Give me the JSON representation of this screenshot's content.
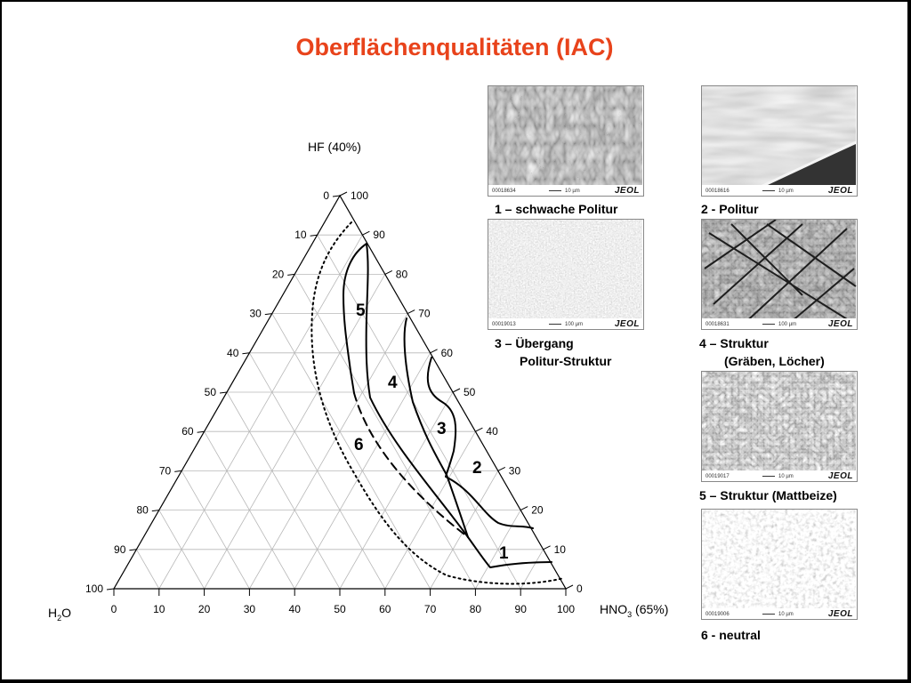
{
  "title": "Oberflächenqualitäten (IAC)",
  "axes": {
    "top_label": "HF (40%)",
    "left_label_base": "H",
    "left_label_sub": "2",
    "left_label_tail": "O",
    "right_label_base": "HNO",
    "right_label_sub": "3",
    "right_label_tail": " (65%)"
  },
  "ticks": {
    "left_side": [
      "0",
      "10",
      "20",
      "30",
      "40",
      "50",
      "60",
      "70",
      "80",
      "90",
      "100"
    ],
    "right_side": [
      "100",
      "90",
      "80",
      "70",
      "60",
      "50",
      "40",
      "30",
      "20",
      "10",
      "0"
    ],
    "bottom": [
      "0",
      "10",
      "20",
      "30",
      "40",
      "50",
      "60",
      "70",
      "80",
      "90",
      "100"
    ]
  },
  "regions": [
    "1",
    "2",
    "3",
    "4",
    "5",
    "6"
  ],
  "micrographs": [
    {
      "id": "00018634",
      "scale": "10 µm",
      "logo": "JEOL",
      "caption_line1": "1 – schwache Politur",
      "caption_line2": "",
      "texture": "t1"
    },
    {
      "id": "00018616",
      "scale": "10 µm",
      "logo": "JEOL",
      "caption_line1": "2 - Politur",
      "caption_line2": "",
      "texture": "t2"
    },
    {
      "id": "00019013",
      "scale": "100 µm",
      "logo": "JEOL",
      "caption_line1": "3 – Übergang",
      "caption_line2": "Politur-Struktur",
      "texture": "t3"
    },
    {
      "id": "00018631",
      "scale": "100 µm",
      "logo": "JEOL",
      "caption_line1": "4 – Struktur",
      "caption_line2": "(Gräben, Löcher)",
      "texture": "t4"
    },
    {
      "id": "00019017",
      "scale": "10 µm",
      "logo": "JEOL",
      "caption_line1": "5 – Struktur (Mattbeize)",
      "caption_line2": "",
      "texture": "t5"
    },
    {
      "id": "00019006",
      "scale": "10 µm",
      "logo": "JEOL",
      "caption_line1": "6 - neutral",
      "caption_line2": "",
      "texture": "t6"
    }
  ]
}
